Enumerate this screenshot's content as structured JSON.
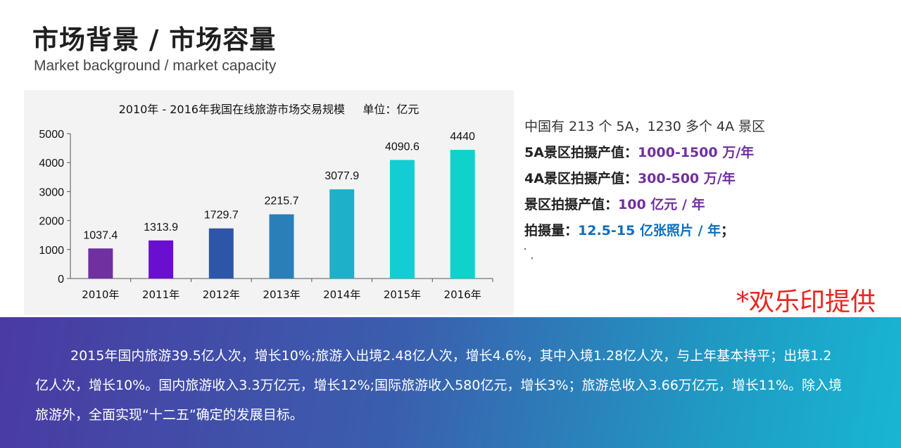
{
  "page": {
    "title": "市场背景 / 市场容量",
    "subtitle": "Market background / market capacity",
    "credit": "*欢乐印提供"
  },
  "facts": {
    "lead": "中国有 213 个 5A，1230 多个 4A 景区",
    "items": [
      {
        "label": "5A景区拍摄产值：",
        "value": "1000-1500 万/年",
        "color": "#7030a0"
      },
      {
        "label": "4A景区拍摄产值：",
        "value": "300-500 万/年",
        "color": "#7030a0"
      },
      {
        "label": "景区拍摄产值：",
        "value": "100 亿元 / 年",
        "color": "#7030a0"
      },
      {
        "label": "拍摄量：",
        "value": "12.5-15 亿张照片 / 年",
        "color": "#0a6fc2",
        "suffix": "；"
      }
    ]
  },
  "banner": {
    "text": "2015年国内旅游39.5亿人次，增长10%;旅游入出境2.48亿人次，增长4.6%，其中入境1.28亿人次，与上年基本持平；出境1.2亿人次，增长10%。国内旅游收入3.3万亿元，增长12%;国际旅游收入580亿元，增长3%；旅游总收入3.66万亿元，增长11%。除入境旅游外，全面实现“十二五”确定的发展目标。"
  },
  "chart_data": {
    "type": "bar",
    "title": "2010年 - 2016年我国在线旅游市场交易规模     单位：亿元",
    "categories": [
      "2010年",
      "2011年",
      "2012年",
      "2013年",
      "2014年",
      "2015年",
      "2016年"
    ],
    "values": [
      1037.4,
      1313.9,
      1729.7,
      2215.7,
      3077.9,
      4090.6,
      4440
    ],
    "value_labels": [
      "1037.4",
      "1313.9",
      "1729.7",
      "2215.7",
      "3077.9",
      "4090.6",
      "4440"
    ],
    "bar_colors": [
      "#7030a0",
      "#6a0fd0",
      "#2e56a8",
      "#2a7fb8",
      "#1eb0c8",
      "#12cdd4",
      "#10d2cc"
    ],
    "ylim": [
      0,
      5000
    ],
    "yticks": [
      0,
      1000,
      2000,
      3000,
      4000,
      5000
    ],
    "grid": false,
    "legend": "none"
  }
}
